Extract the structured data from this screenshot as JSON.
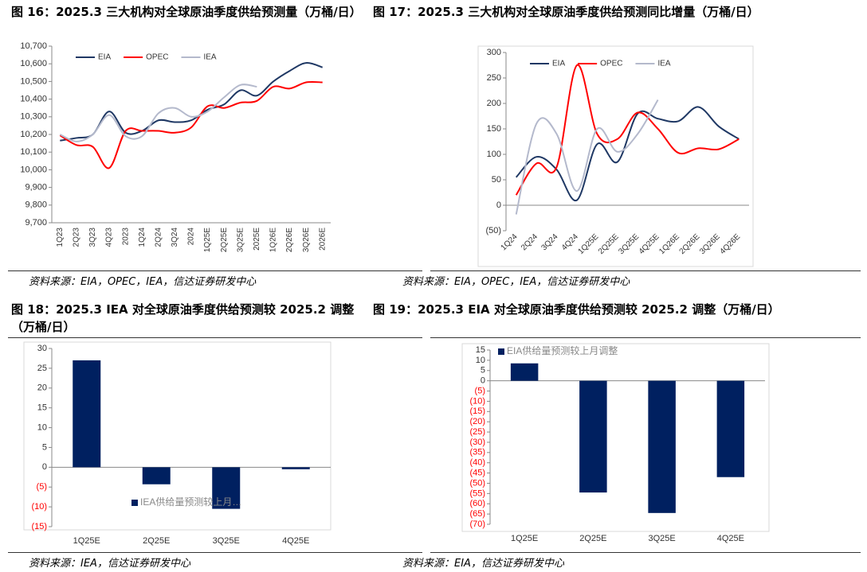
{
  "chart_data": [
    {
      "type": "line",
      "title": "图 16：2025.3 三大机构对全球原油季度供给预测量（万桶/日）",
      "source": "资料来源：EIA，OPEC，IEA，信达证券研发中心",
      "categories": [
        "1Q23",
        "2Q23",
        "3Q23",
        "4Q23",
        "2023",
        "1Q24",
        "2Q24",
        "3Q24",
        "2024",
        "1Q25E",
        "2Q25E",
        "3Q25E",
        "2025E",
        "1Q26E",
        "2Q26E",
        "3Q26E",
        "2026E"
      ],
      "series": [
        {
          "name": "EIA",
          "color": "#1f3864",
          "values": [
            10165,
            10180,
            10200,
            10330,
            10210,
            10220,
            10280,
            10270,
            10280,
            10340,
            10370,
            10450,
            10420,
            10500,
            10560,
            10605,
            10580
          ]
        },
        {
          "name": "OPEC",
          "color": "#ff0000",
          "values": [
            10195,
            10140,
            10130,
            10010,
            10220,
            10220,
            10220,
            10210,
            10240,
            10360,
            10350,
            10380,
            10390,
            10470,
            10460,
            10495,
            10495
          ]
        },
        {
          "name": "IEA",
          "color": "#b4b9cc",
          "values": [
            10200,
            10160,
            10200,
            10310,
            10190,
            10190,
            10320,
            10350,
            10300,
            10330,
            10410,
            10480,
            10470,
            null,
            null,
            null,
            null
          ]
        }
      ],
      "ylim": [
        9700,
        10700
      ],
      "yticks": [
        {
          "value": 9700,
          "label": "9,700"
        },
        {
          "value": 9800,
          "label": "9,800"
        },
        {
          "value": 9900,
          "label": "9,900"
        },
        {
          "value": 10000,
          "label": "10,000"
        },
        {
          "value": 10100,
          "label": "10,100"
        },
        {
          "value": 10200,
          "label": "10,200"
        },
        {
          "value": 10300,
          "label": "10,300"
        },
        {
          "value": 10400,
          "label": "10,400"
        },
        {
          "value": 10500,
          "label": "10,500"
        },
        {
          "value": 10600,
          "label": "10,600"
        },
        {
          "value": 10700,
          "label": "10,700"
        }
      ],
      "legend": "upper left"
    },
    {
      "type": "line",
      "title": "图 17：2025.3 三大机构对全球原油季度供给预测同比增量（万桶/日）",
      "source": "资料来源：EIA，OPEC，IEA，信达证券研发中心",
      "categories": [
        "1Q24",
        "2Q24",
        "3Q24",
        "4Q24",
        "1Q25E",
        "2Q25E",
        "3Q25E",
        "4Q25E",
        "1Q26E",
        "2Q26E",
        "3Q26E",
        "4Q26E"
      ],
      "series": [
        {
          "name": "EIA",
          "color": "#1f3864",
          "values": [
            55,
            95,
            70,
            10,
            120,
            85,
            180,
            170,
            165,
            193,
            155,
            130
          ]
        },
        {
          "name": "OPEC",
          "color": "#ff0000",
          "values": [
            20,
            82,
            75,
            275,
            140,
            130,
            182,
            150,
            103,
            112,
            110,
            130
          ]
        },
        {
          "name": "IEA",
          "color": "#b4b9cc",
          "values": [
            -18,
            160,
            140,
            28,
            150,
            105,
            140,
            207,
            null,
            null,
            null,
            null
          ]
        }
      ],
      "ylim": [
        -50,
        300
      ],
      "yticks": [
        {
          "value": -50,
          "label": "(50)"
        },
        0,
        50,
        100,
        150,
        200,
        250,
        300
      ],
      "legend": "upper left"
    },
    {
      "type": "bar",
      "title": "图 18：2025.3 IEA 对全球原油季度供给预测较 2025.2 调整（万桶/日）",
      "source": "资料来源：IEA，信达证券研发中心",
      "categories": [
        "1Q25E",
        "2Q25E",
        "3Q25E",
        "4Q25E"
      ],
      "series": [
        {
          "name": "IEA供给量预测较上月…",
          "color": "#002060",
          "values": [
            27,
            -4.3,
            -10.5,
            -0.5
          ]
        }
      ],
      "ylim": [
        -15,
        30
      ],
      "yticks": [
        {
          "value": -15,
          "label": "(15)"
        },
        {
          "value": -10,
          "label": "(10)"
        },
        {
          "value": -5,
          "label": "(5)"
        },
        0,
        5,
        10,
        15,
        20,
        25,
        30
      ],
      "negative_tick_color": "#ff0000",
      "legend": "lower center"
    },
    {
      "type": "bar",
      "title": "图 19：2025.3 EIA 对全球原油季度供给预测较 2025.2 调整（万桶/日）",
      "source": "资料来源：EIA，信达证券研发中心",
      "categories": [
        "1Q25E",
        "2Q25E",
        "3Q25E",
        "4Q25E"
      ],
      "series": [
        {
          "name": "EIA供给量预测较上月调整",
          "color": "#002060",
          "values": [
            8.5,
            -54.5,
            -64.5,
            -47
          ]
        }
      ],
      "ylim": [
        -70,
        15
      ],
      "yticks": [
        {
          "value": -70,
          "label": "(70)"
        },
        {
          "value": -65,
          "label": "(65)"
        },
        {
          "value": -60,
          "label": "(60)"
        },
        {
          "value": -55,
          "label": "(55)"
        },
        {
          "value": -50,
          "label": "(50)"
        },
        {
          "value": -45,
          "label": "(45)"
        },
        {
          "value": -40,
          "label": "(40)"
        },
        {
          "value": -35,
          "label": "(35)"
        },
        {
          "value": -30,
          "label": "(30)"
        },
        {
          "value": -25,
          "label": "(25)"
        },
        {
          "value": -20,
          "label": "(20)"
        },
        {
          "value": -15,
          "label": "(15)"
        },
        {
          "value": -10,
          "label": "(10)"
        },
        {
          "value": -5,
          "label": "(5)"
        },
        0,
        5,
        10,
        15
      ],
      "negative_tick_color": "#ff0000",
      "legend": "upper left"
    }
  ]
}
